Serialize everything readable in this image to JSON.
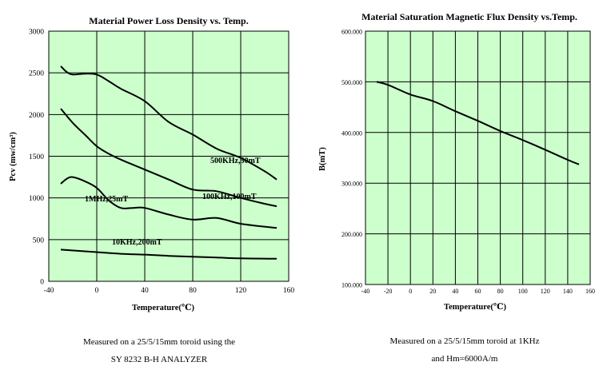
{
  "chart_data": [
    {
      "type": "line",
      "title": "Material  Power  Loss Density vs.  Temp.",
      "xlabel": "Temperature(℃)",
      "ylabel": "Pcv (mw/cm³)",
      "xlim": [
        -40,
        160
      ],
      "ylim": [
        0,
        3000
      ],
      "x_ticks": [
        "-40",
        "0",
        "40",
        "80",
        "120",
        "160"
      ],
      "y_ticks": [
        "0",
        "500",
        "1000",
        "1500",
        "2000",
        "2500",
        "3000"
      ],
      "grid": true,
      "background_color": "#ccffcc",
      "series": [
        {
          "name": "500KHz,50mT",
          "x": [
            -30,
            -25,
            -20,
            -10,
            0,
            10,
            20,
            40,
            60,
            80,
            100,
            120,
            140,
            150
          ],
          "y": [
            2580,
            2510,
            2480,
            2490,
            2480,
            2400,
            2310,
            2160,
            1910,
            1760,
            1590,
            1480,
            1320,
            1220
          ]
        },
        {
          "name": "100KHz,100mT",
          "x": [
            -30,
            -20,
            -10,
            0,
            10,
            20,
            40,
            60,
            80,
            100,
            120,
            140,
            150
          ],
          "y": [
            2070,
            1900,
            1760,
            1620,
            1530,
            1460,
            1340,
            1220,
            1100,
            1080,
            1000,
            930,
            900
          ]
        },
        {
          "name": "1MHz,25mT",
          "x": [
            -30,
            -25,
            -20,
            -10,
            0,
            10,
            20,
            30,
            40,
            60,
            80,
            100,
            120,
            150
          ],
          "y": [
            1170,
            1230,
            1250,
            1200,
            1120,
            970,
            880,
            880,
            880,
            800,
            740,
            760,
            690,
            640
          ]
        },
        {
          "name": "10KHz,200mT",
          "x": [
            -30,
            0,
            20,
            40,
            60,
            80,
            100,
            120,
            150
          ],
          "y": [
            380,
            350,
            330,
            320,
            305,
            295,
            285,
            275,
            270
          ]
        }
      ],
      "caption_lines": [
        "Measured on a 25/5/15mm toroid using the",
        "SY 8232  B-H ANALYZER"
      ]
    },
    {
      "type": "line",
      "title": "Material Saturation Magnetic Flux Density vs.Temp.",
      "xlabel": "Temperature(℃)",
      "ylabel": "B(mT)",
      "xlim": [
        -40,
        160
      ],
      "ylim": [
        100,
        600
      ],
      "x_ticks": [
        "-40",
        "-20",
        "0",
        "20",
        "40",
        "60",
        "80",
        "100",
        "120",
        "140",
        "160"
      ],
      "y_ticks": [
        "100.000",
        "200.000",
        "300.000",
        "400.000",
        "500.000",
        "600.000"
      ],
      "grid": true,
      "background_color": "#ccffcc",
      "series": [
        {
          "x": [
            -30,
            -20,
            0,
            20,
            40,
            60,
            80,
            100,
            120,
            140,
            150
          ],
          "y": [
            500,
            494,
            475,
            462,
            442,
            423,
            403,
            385,
            366,
            346,
            337
          ]
        }
      ],
      "caption_lines": [
        "Measured on a 25/5/15mm toroid at  1KHz",
        "and Hm=6000A/m"
      ]
    }
  ]
}
